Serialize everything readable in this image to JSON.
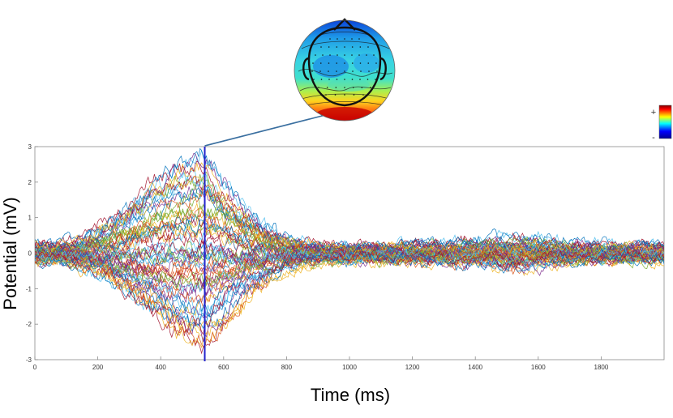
{
  "chart_data": {
    "type": "line",
    "title": "",
    "xlabel": "Time (ms)",
    "ylabel": "Potential (mV)",
    "xlim": [
      0,
      2000
    ],
    "ylim": [
      -3,
      3
    ],
    "x_ticks": [
      0,
      200,
      400,
      600,
      800,
      1000,
      1200,
      1400,
      1600,
      1800
    ],
    "y_ticks": [
      3,
      2,
      1,
      0,
      -1,
      -2,
      -3
    ],
    "grid": false,
    "n_channels": 64,
    "sample_step_ms": 5,
    "envelope_ms": [
      0,
      100,
      200,
      300,
      400,
      500,
      540,
      600,
      700,
      800,
      900,
      1000,
      1100,
      1200,
      1300,
      1400,
      1500,
      1600,
      1700,
      1800,
      2000
    ],
    "envelope_amplitude": [
      0.45,
      0.6,
      1.2,
      1.8,
      2.1,
      2.45,
      2.6,
      2.2,
      1.6,
      1.0,
      0.45,
      0.35,
      0.4,
      0.55,
      0.5,
      0.5,
      0.6,
      0.65,
      0.45,
      0.4,
      0.35
    ],
    "cursor": {
      "time_ms": 540,
      "color": "#2222cc"
    },
    "topomap": {
      "linked_time_ms": 540
    },
    "colorbar": {
      "max_label": "+",
      "min_label": "-"
    },
    "series_colors": [
      "#0072BD",
      "#D95319",
      "#EDB120",
      "#7E2F8E",
      "#77AC30",
      "#4DBEEE",
      "#A2142F"
    ]
  }
}
